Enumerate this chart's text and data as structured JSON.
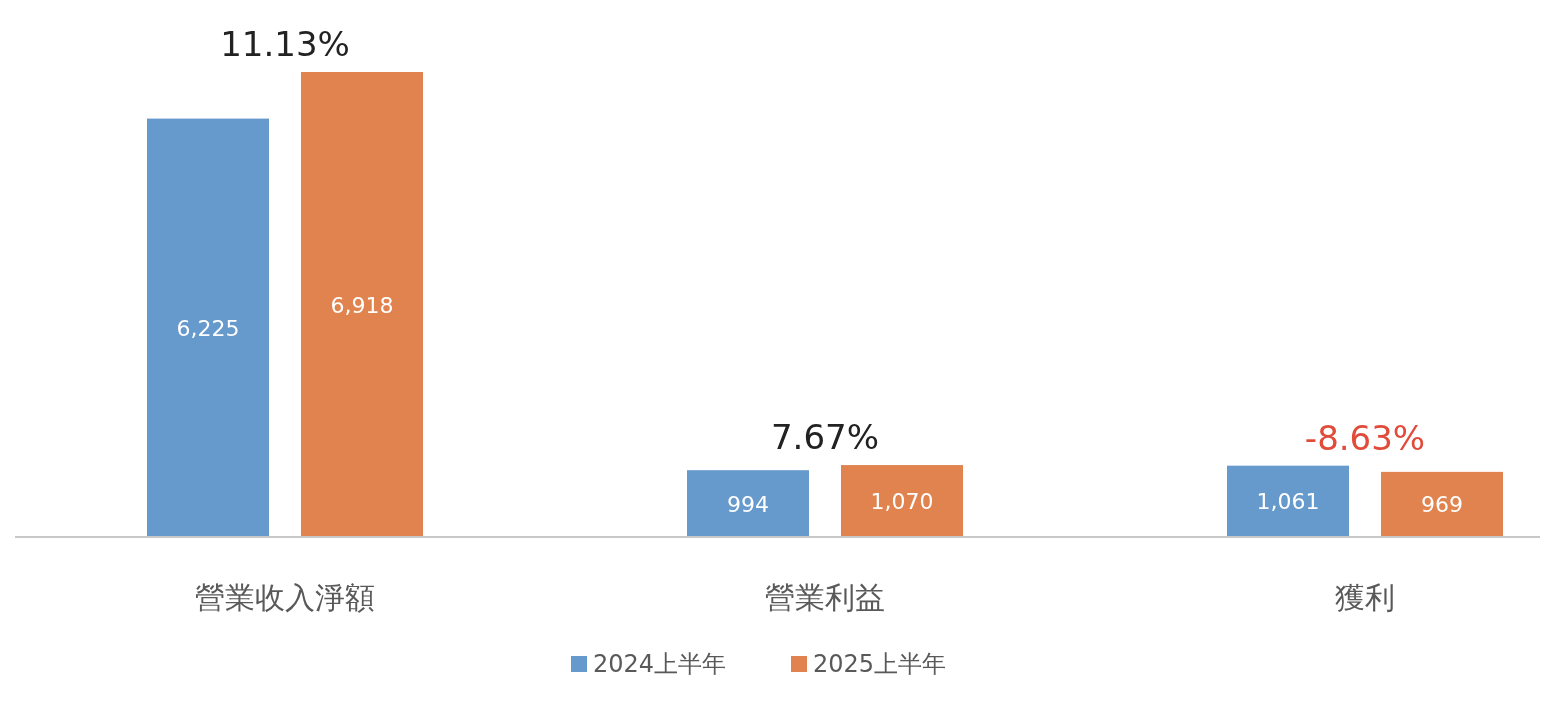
{
  "chart_data": {
    "type": "bar",
    "categories": [
      "營業收入淨額",
      "營業利益",
      "獲利"
    ],
    "series": [
      {
        "name": "2024上半年",
        "color": "#6699cc",
        "values": [
          6225,
          994,
          1061
        ],
        "value_labels": [
          "6,225",
          "994",
          "1,061"
        ]
      },
      {
        "name": "2025上半年",
        "color": "#e0834f",
        "values": [
          6918,
          1070,
          969
        ],
        "value_labels": [
          "6,918",
          "1,070",
          "969"
        ]
      }
    ],
    "annotations": [
      "11.13%",
      "7.67%",
      "-8.63%"
    ],
    "legend": "bottom"
  }
}
